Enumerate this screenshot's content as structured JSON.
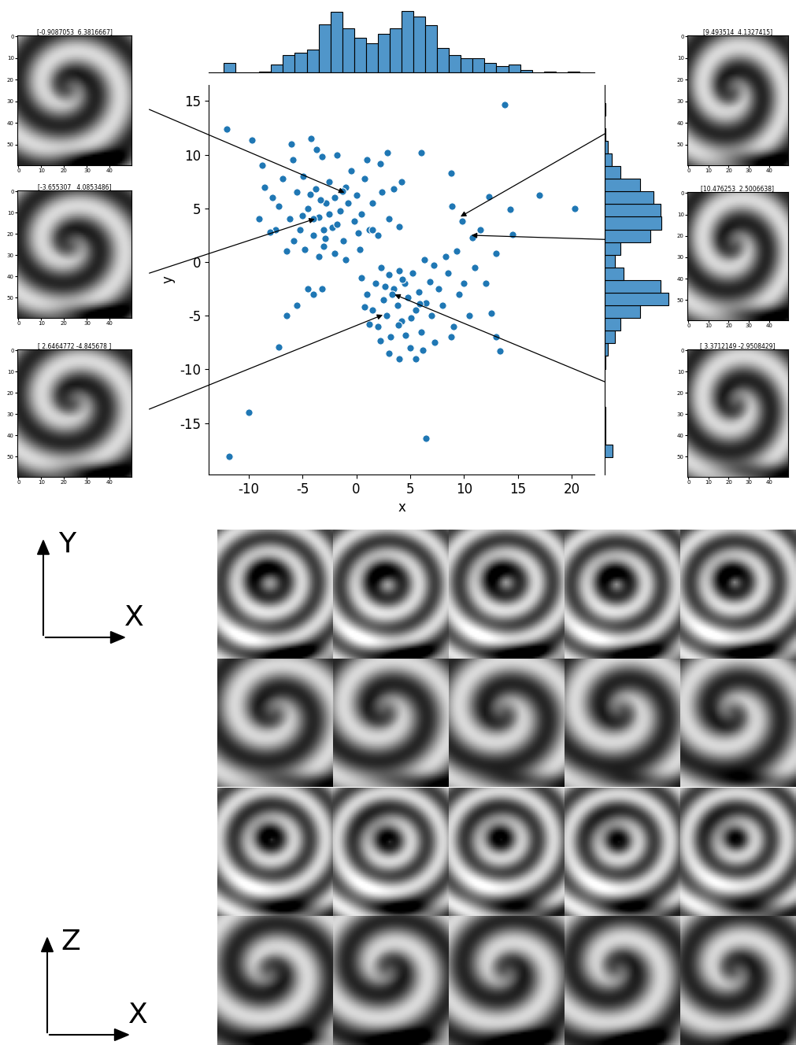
{
  "chart_data": [
    {
      "type": "scatter",
      "xlabel": "x",
      "ylabel": "y",
      "color": "#1f77b4",
      "xlim": [
        -13.7,
        22.1
      ],
      "ylim": [
        -19.8,
        16.5
      ],
      "xticks": [
        -10,
        -5,
        0,
        5,
        10,
        15,
        20
      ],
      "yticks": [
        -15,
        -10,
        -5,
        0,
        5,
        10,
        15
      ],
      "x": [
        -8.5,
        -7.8,
        -7.2,
        -6.8,
        -6.2,
        -5.9,
        -5.5,
        -5.2,
        -4.9,
        -4.5,
        -4.2,
        -4,
        -3.8,
        -3.5,
        -3.2,
        -3,
        -2.8,
        -2.5,
        -2.2,
        -2,
        -1.8,
        -1.5,
        -1.2,
        -1,
        -0.8,
        -0.5,
        -0.2,
        0,
        0.3,
        0.5,
        0.8,
        1.2,
        1.5,
        2,
        2.4,
        -6.5,
        -5.8,
        -7.5,
        -8,
        -9,
        -3.5,
        -2,
        -4.8,
        -1,
        1,
        -3,
        -4,
        -2.5,
        -1.8,
        -3.3,
        -4.3,
        -2.9,
        -5,
        -1.3,
        0.2,
        3,
        3.5,
        4.2,
        4,
        2.2,
        -9.7,
        -12,
        -8.7,
        -6,
        -3.7,
        0.5,
        1,
        1.5,
        1.8,
        2,
        2.3,
        2.5,
        2.8,
        3,
        3.2,
        3.5,
        3.8,
        4,
        4.2,
        4.5,
        4.8,
        5,
        5.2,
        5.5,
        5.8,
        6,
        6.3,
        6.5,
        6.8,
        7,
        7.3,
        7.6,
        8,
        8.5,
        9,
        9.5,
        10,
        10.5,
        11,
        12,
        12.5,
        13,
        13.3,
        3,
        4,
        5.5,
        1.2,
        0.8,
        2.2,
        6.2,
        8.8,
        4.6,
        3.3,
        4.3,
        5.1,
        2.7,
        3.9,
        5.9,
        7.2,
        8.3,
        9.3,
        10.8,
        11.5,
        12.3,
        8.9,
        9.8,
        13,
        -4.5,
        -4,
        -3.2,
        -5.5,
        -6.5,
        -7.2,
        14.5,
        14.3,
        17,
        20.3,
        13.8,
        -10,
        -11.8,
        6.5,
        8.8,
        6,
        2.9,
        1.5
      ],
      "y": [
        7,
        6,
        5.2,
        7.8,
        4,
        9.5,
        6.5,
        3,
        8,
        5,
        11.5,
        2.5,
        6.8,
        4.2,
        9.8,
        1.5,
        5.5,
        7.5,
        3.2,
        6,
        10,
        4.8,
        2,
        7,
        5.5,
        8.5,
        3.8,
        6.2,
        1.2,
        4.5,
        7.8,
        3,
        5.5,
        2.5,
        6.5,
        1,
        2,
        3,
        2.8,
        4,
        0.5,
        0.8,
        1.2,
        0.2,
        9.5,
        3,
        4,
        4.5,
        3.5,
        5.8,
        6.3,
        2.2,
        4.3,
        6.6,
        2.7,
        4,
        6.8,
        7.5,
        3.3,
        9.2,
        11.4,
        12.4,
        9,
        11,
        10.5,
        -1.5,
        -3,
        -4.5,
        -2,
        -6,
        -0.5,
        -3.5,
        -5,
        -1.2,
        -7,
        -2.5,
        -4,
        -0.8,
        -5.5,
        -2,
        -3.3,
        -8,
        -1,
        -4.5,
        -2.8,
        -6.5,
        0.2,
        -3.8,
        -1.8,
        -5,
        -7.5,
        -2.5,
        -4,
        -1,
        -6,
        -3,
        -2,
        -5,
        -0.5,
        -2,
        -4.8,
        -7,
        -8.3,
        -8.5,
        -9,
        -9,
        -5.8,
        -4.2,
        -7.3,
        -8.2,
        -7,
        -6.8,
        -3,
        -1.6,
        -5.2,
        -2.3,
        -5.9,
        -3.9,
        -0.3,
        0.5,
        1,
        2.3,
        3,
        6.1,
        5.2,
        3.8,
        0.8,
        -2.5,
        -3,
        -2.5,
        -4,
        -5,
        -7.9,
        2.6,
        4.9,
        6.2,
        5,
        14.7,
        -14,
        -18.1,
        -16.4,
        8.3,
        10.2,
        10.2,
        3
      ]
    },
    {
      "type": "histogram",
      "orientation": "vertical",
      "tick_labels": false,
      "color": "#5096ca",
      "xlim": [
        -13.7,
        22.1
      ],
      "ylim": [
        0,
        60
      ],
      "bins": [
        -12.3,
        -11.2,
        -10.1,
        -9.0,
        -7.9,
        -6.8,
        -5.7,
        -4.6,
        -3.5,
        -2.4,
        -1.3,
        -0.2,
        0.9,
        2.0,
        3.1,
        4.2,
        5.3,
        6.4,
        7.5,
        8.6,
        9.7,
        10.8,
        11.9,
        13.0,
        14.1,
        15.2,
        16.3,
        17.4,
        18.5,
        19.6,
        20.7
      ],
      "counts": [
        9,
        0,
        0,
        1,
        7,
        16,
        18,
        21,
        45,
        56,
        41,
        32,
        27,
        36,
        41,
        57,
        52,
        44,
        23,
        16,
        13,
        13,
        9,
        6,
        7,
        2,
        0,
        1,
        0,
        1
      ]
    },
    {
      "type": "histogram",
      "orientation": "horizontal",
      "tick_labels": false,
      "color": "#5096ca",
      "ylim": [
        -19.8,
        16.5
      ],
      "xlim": [
        0,
        60
      ],
      "bins": [
        -18.2,
        -17.02,
        -15.84,
        -14.66,
        -13.48,
        -12.3,
        -11.12,
        -9.94,
        -8.76,
        -7.58,
        -6.4,
        -5.22,
        -4.04,
        -2.86,
        -1.68,
        -0.5,
        0.68,
        1.86,
        3.04,
        4.22,
        5.4,
        6.58,
        7.76,
        8.94,
        10.12,
        11.3,
        12.48,
        13.66,
        14.84
      ],
      "counts": [
        7,
        1,
        1,
        1,
        0,
        0,
        0,
        1,
        3,
        9,
        14,
        32,
        57,
        50,
        17,
        9,
        14,
        41,
        51,
        50,
        44,
        32,
        14,
        6,
        3,
        1,
        0,
        1
      ]
    }
  ],
  "thumbnail_axes": {
    "xlim": [
      -0.5,
      49.5
    ],
    "ylim": [
      59.5,
      -0.5
    ],
    "xticks": [
      0,
      10,
      20,
      30,
      40
    ],
    "yticks": [
      0,
      10,
      20,
      30,
      40,
      50
    ]
  },
  "thumbnails": [
    {
      "title": "[-0.9087053  6.3816667]",
      "point": [
        -0.9087053,
        6.3816667
      ],
      "side": "left"
    },
    {
      "title": "[-3.655307   4.0853486]",
      "point": [
        -3.655307,
        4.0853486
      ],
      "side": "left"
    },
    {
      "title": "[ 2.6464772 -4.845678 ]",
      "point": [
        2.6464772,
        -4.845678
      ],
      "side": "left"
    },
    {
      "title": "[9.493514  4.1327415]",
      "point": [
        9.493514,
        4.1327415
      ],
      "side": "right"
    },
    {
      "title": "[10.476253  2.5006638]",
      "point": [
        10.476253,
        2.5006638
      ],
      "side": "right"
    },
    {
      "title": "[ 3.3712149 -2.9508429]",
      "point": [
        3.3712149,
        -2.9508429
      ],
      "side": "right"
    }
  ],
  "axis_icons": [
    {
      "vertical": "Y",
      "horizontal": "X"
    },
    {
      "vertical": "Z",
      "horizontal": "X"
    }
  ],
  "patch_grid": {
    "rows": 4,
    "columns": 5
  }
}
